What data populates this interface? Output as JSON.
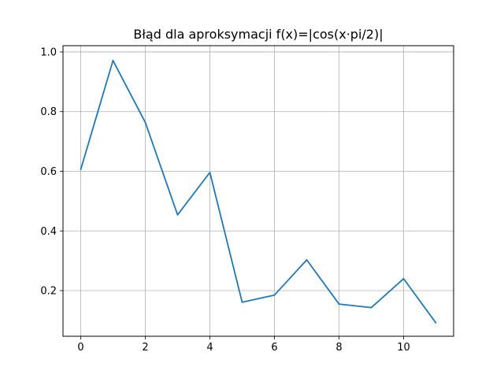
{
  "chart_data": {
    "type": "line",
    "title": "Błąd dla aproksymacji f(x)=|cos(x·pi/2)|",
    "xlabel": "",
    "ylabel": "",
    "xlim": [
      -0.55,
      11.55
    ],
    "ylim": [
      0.047,
      1.021
    ],
    "x_ticks": [
      0,
      2,
      4,
      6,
      8,
      10
    ],
    "x_tick_labels": [
      "0",
      "2",
      "4",
      "6",
      "8",
      "10"
    ],
    "y_ticks": [
      0.2,
      0.4,
      0.6,
      0.8,
      1.0
    ],
    "y_tick_labels": [
      "0.2",
      "0.4",
      "0.6",
      "0.8",
      "1.0"
    ],
    "grid": true,
    "series": [
      {
        "color": "#1f77b4",
        "x": [
          0,
          1,
          2,
          3,
          4,
          5,
          6,
          7,
          8,
          9,
          10,
          11
        ],
        "y": [
          0.606,
          0.971,
          0.764,
          0.454,
          0.596,
          0.161,
          0.185,
          0.303,
          0.155,
          0.143,
          0.24,
          0.092
        ]
      }
    ]
  }
}
